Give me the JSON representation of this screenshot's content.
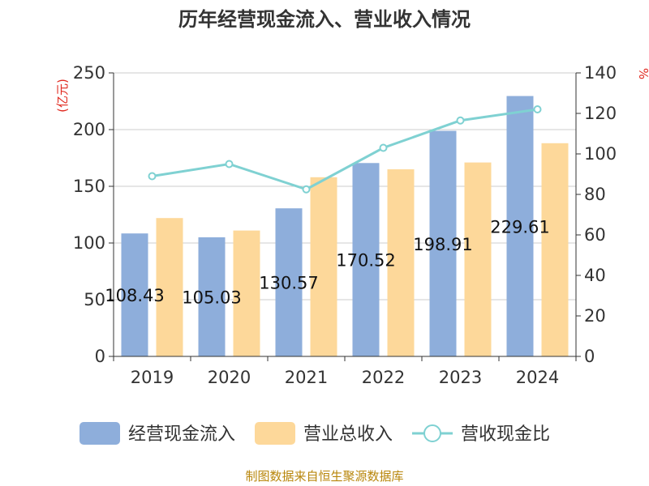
{
  "chart_data": {
    "type": "bar",
    "title": "历年经营现金流入、营业收入情况",
    "categories": [
      "2019",
      "2020",
      "2021",
      "2022",
      "2023",
      "2024"
    ],
    "left_unit": "(亿元)",
    "right_unit": "%",
    "ylim": [
      0,
      250
    ],
    "y_ticks": [
      "0",
      "50",
      "100",
      "150",
      "200",
      "250"
    ],
    "y2lim": [
      0,
      140
    ],
    "y2_ticks": [
      "0",
      "20",
      "40",
      "60",
      "80",
      "100",
      "120",
      "140"
    ],
    "grid": true,
    "legend_position": "bottom",
    "series": [
      {
        "name": "经营现金流入",
        "kind": "bar",
        "axis": "left",
        "color": "#8eaedb",
        "values": [
          108.43,
          105.03,
          130.57,
          170.52,
          198.91,
          229.61
        ],
        "data_labels": [
          "108.43",
          "105.03",
          "130.57",
          "170.52",
          "198.91",
          "229.61"
        ]
      },
      {
        "name": "营业总收入",
        "kind": "bar",
        "axis": "left",
        "color": "#fdd89a",
        "values": [
          122,
          111,
          158,
          165,
          171,
          188
        ]
      },
      {
        "name": "营收现金比",
        "kind": "line",
        "axis": "right",
        "color": "#7fd1d2",
        "values": [
          89,
          95,
          82.5,
          103,
          116.5,
          122
        ]
      }
    ],
    "source": "制图数据来自恒生聚源数据库"
  }
}
